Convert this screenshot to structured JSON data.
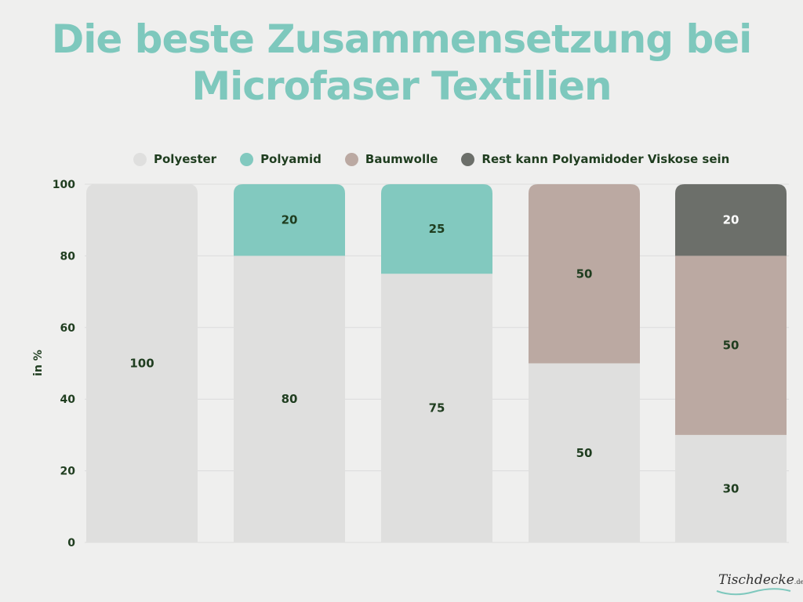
{
  "title_line1": "Die beste Zusammensetzung bei",
  "title_line2": "Microfaser Textilien",
  "logo": {
    "name": "Tischdecke",
    "suffix": ".de"
  },
  "colors": {
    "title": "#7ec8bd",
    "Polyester": "#dfdfde",
    "Polyamid": "#82c9bf",
    "Baumwolle": "#bba9a2",
    "Rest": "#6c6f6a",
    "label_dark": "#1f3d1f",
    "label_light": "#ffffff"
  },
  "chart_data": {
    "type": "bar",
    "stacked": true,
    "categories": [
      "",
      "",
      "",
      "",
      ""
    ],
    "ylabel": "in %",
    "ylim": [
      0,
      100
    ],
    "yticks": [
      0,
      20,
      40,
      60,
      80,
      100
    ],
    "grid": true,
    "legend_position": "top",
    "series": [
      {
        "name": "Polyester",
        "values": [
          100,
          80,
          75,
          50,
          30
        ]
      },
      {
        "name": "Polyamid",
        "values": [
          0,
          20,
          25,
          0,
          0
        ]
      },
      {
        "name": "Baumwolle",
        "values": [
          0,
          0,
          0,
          50,
          50
        ]
      },
      {
        "name": "Rest kann Polyamidoder Viskose sein",
        "values": [
          0,
          0,
          0,
          0,
          20
        ]
      }
    ]
  }
}
